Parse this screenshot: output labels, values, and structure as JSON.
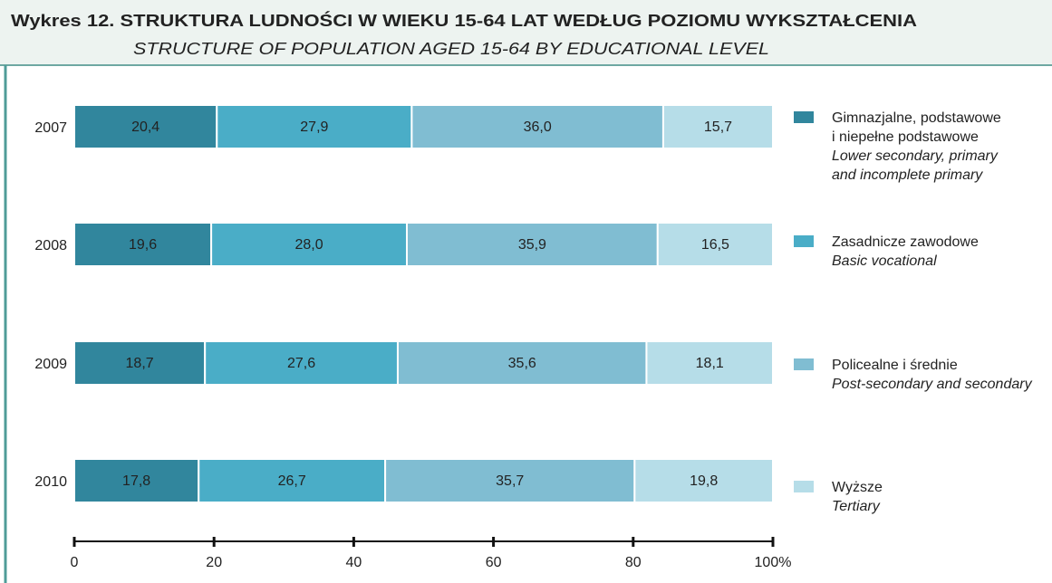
{
  "chart_data": {
    "type": "stacked_barh",
    "title": "Wykres 12. STRUKTURA LUDNOŚCI W WIEKU 15-64 LAT WEDŁUG POZIOMU WYKSZTAŁCENIA",
    "subtitle": "STRUCTURE OF POPULATION AGED 15-64 BY EDUCATIONAL LEVEL",
    "categories": [
      "2007",
      "2008",
      "2009",
      "2010"
    ],
    "series": [
      {
        "name": "Gimnazjalne, podstawowe\ni niepełne podstawowe",
        "name_en": "Lower secondary, primary\nand incomplete primary",
        "color": "#31869d",
        "values": [
          20.4,
          19.6,
          18.7,
          17.8
        ],
        "value_labels": [
          "20,4",
          "19,6",
          "18,7",
          "17,8"
        ]
      },
      {
        "name": "Zasadnicze zawodowe",
        "name_en": "Basic vocational",
        "color": "#4aadc7",
        "values": [
          27.9,
          28.0,
          27.6,
          26.7
        ],
        "value_labels": [
          "27,9",
          "28,0",
          "27,6",
          "26,7"
        ]
      },
      {
        "name": "Policealne i średnie",
        "name_en": "Post-secondary and secondary",
        "color": "#80bdd2",
        "values": [
          36.0,
          35.9,
          35.6,
          35.7
        ],
        "value_labels": [
          "36,0",
          "35,9",
          "35,6",
          "35,7"
        ]
      },
      {
        "name": "Wyższe",
        "name_en": "Tertiary",
        "color": "#b6dde8",
        "values": [
          15.7,
          16.5,
          18.1,
          19.8
        ],
        "value_labels": [
          "15,7",
          "16,5",
          "18,1",
          "19,8"
        ]
      }
    ],
    "xlim": [
      0,
      100
    ],
    "xticks": [
      0,
      20,
      40,
      60,
      80,
      {
        "value": 100,
        "label": "100%"
      }
    ]
  }
}
